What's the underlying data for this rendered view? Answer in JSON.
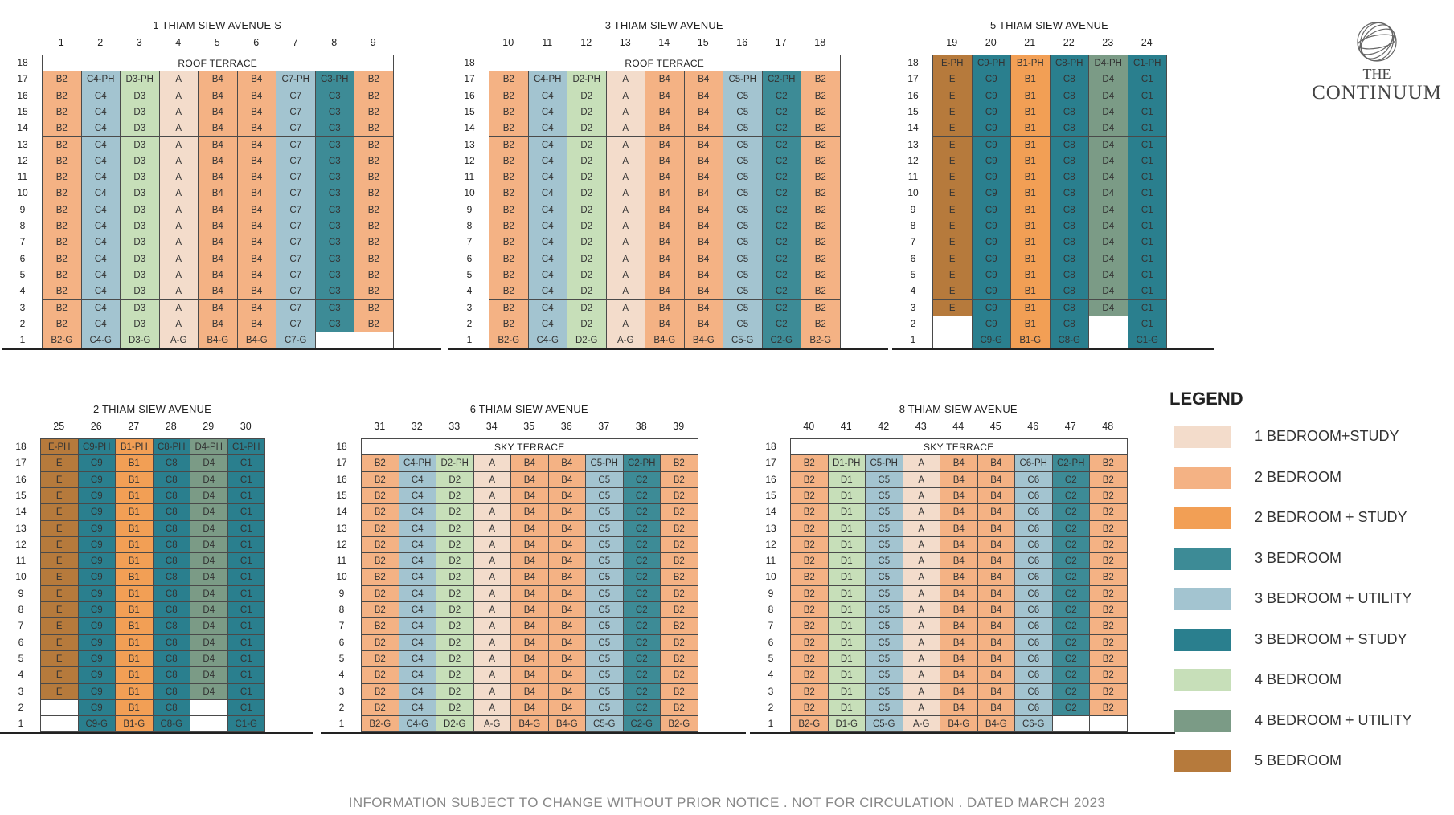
{
  "colors": {
    "A": "#f3dccb",
    "B": "#f4b284",
    "B1": "#f29f55",
    "C1": "#2a7f8e",
    "C2": "#3d8b96",
    "C3": "#3d8b96",
    "C4": "#a3c4d0",
    "C5": "#a3c4d0",
    "C6": "#a3c4d0",
    "C7": "#a3c4d0",
    "C8": "#2a7f8e",
    "C9": "#2a7f8e",
    "D1": "#c7dfb9",
    "D2": "#c7dfb9",
    "D3": "#c7dfb9",
    "D4": "#7b9b86",
    "E": "#b67a3c",
    "empty": "#ffffff"
  },
  "blocks": [
    {
      "name": "1 THIAM SIEW AVENUE S",
      "columns": [
        "1",
        "2",
        "3",
        "4",
        "5",
        "6",
        "7",
        "8",
        "9"
      ],
      "top_floor": "18",
      "top_label": "ROOF TERRACE",
      "penthouse": [
        "B2",
        "C4-PH",
        "D3-PH",
        "A",
        "B4",
        "B4",
        "C7-PH",
        "C3-PH",
        "B2"
      ],
      "typical": [
        "B2",
        "C4",
        "D3",
        "A",
        "B4",
        "B4",
        "C7",
        "C3",
        "B2"
      ],
      "ground": [
        "B2-G",
        "C4-G",
        "D3-G",
        "A-G",
        "B4-G",
        "B4-G",
        "C7-G",
        "",
        ""
      ],
      "typical_floors": [
        "16",
        "15",
        "14",
        "13",
        "12",
        "11",
        "10",
        "9",
        "8",
        "7",
        "6",
        "5",
        "4",
        "3",
        "2"
      ],
      "blank_floors": {}
    },
    {
      "name": "3 THIAM SIEW AVENUE",
      "columns": [
        "10",
        "11",
        "12",
        "13",
        "14",
        "15",
        "16",
        "17",
        "18"
      ],
      "top_floor": "18",
      "top_label": "ROOF TERRACE",
      "penthouse": [
        "B2",
        "C4-PH",
        "D2-PH",
        "A",
        "B4",
        "B4",
        "C5-PH",
        "C2-PH",
        "B2"
      ],
      "typical": [
        "B2",
        "C4",
        "D2",
        "A",
        "B4",
        "B4",
        "C5",
        "C2",
        "B2"
      ],
      "ground": [
        "B2-G",
        "C4-G",
        "D2-G",
        "A-G",
        "B4-G",
        "B4-G",
        "C5-G",
        "C2-G",
        "B2-G"
      ],
      "typical_floors": [
        "16",
        "15",
        "14",
        "13",
        "12",
        "11",
        "10",
        "9",
        "8",
        "7",
        "6",
        "5",
        "4",
        "3",
        "2"
      ],
      "blank_floors": {}
    },
    {
      "name": "5 THIAM SIEW AVENUE",
      "columns": [
        "19",
        "20",
        "21",
        "22",
        "23",
        "24"
      ],
      "top_floor": "18",
      "top_label": "",
      "top_row": [
        "E-PH",
        "C9-PH",
        "B1-PH",
        "C8-PH",
        "D4-PH",
        "C1-PH"
      ],
      "penthouse": [
        "E",
        "C9",
        "B1",
        "C8",
        "D4",
        "C1"
      ],
      "typical": [
        "E",
        "C9",
        "B1",
        "C8",
        "D4",
        "C1"
      ],
      "ground": [
        "",
        "C9-G",
        "B1-G",
        "C8-G",
        "",
        "C1-G"
      ],
      "typical_floors": [
        "16",
        "15",
        "14",
        "13",
        "12",
        "11",
        "10",
        "9",
        "8",
        "7",
        "6",
        "5",
        "4",
        "3",
        "2"
      ],
      "blank_floors": {
        "2": [
          0,
          4
        ]
      }
    },
    {
      "name": "2 THIAM SIEW AVENUE",
      "columns": [
        "25",
        "26",
        "27",
        "28",
        "29",
        "30"
      ],
      "top_floor": "18",
      "top_label": "",
      "top_row": [
        "E-PH",
        "C9-PH",
        "B1-PH",
        "C8-PH",
        "D4-PH",
        "C1-PH"
      ],
      "penthouse": [
        "E",
        "C9",
        "B1",
        "C8",
        "D4",
        "C1"
      ],
      "typical": [
        "E",
        "C9",
        "B1",
        "C8",
        "D4",
        "C1"
      ],
      "ground": [
        "",
        "C9-G",
        "B1-G",
        "C8-G",
        "",
        "C1-G"
      ],
      "typical_floors": [
        "16",
        "15",
        "14",
        "13",
        "12",
        "11",
        "10",
        "9",
        "8",
        "7",
        "6",
        "5",
        "4",
        "3",
        "2"
      ],
      "blank_floors": {
        "2": [
          0,
          4
        ]
      }
    },
    {
      "name": "6 THIAM SIEW AVENUE",
      "columns": [
        "31",
        "32",
        "33",
        "34",
        "35",
        "36",
        "37",
        "38",
        "39"
      ],
      "top_floor": "18",
      "top_label": "SKY TERRACE",
      "penthouse": [
        "B2",
        "C4-PH",
        "D2-PH",
        "A",
        "B4",
        "B4",
        "C5-PH",
        "C2-PH",
        "B2"
      ],
      "typical": [
        "B2",
        "C4",
        "D2",
        "A",
        "B4",
        "B4",
        "C5",
        "C2",
        "B2"
      ],
      "ground": [
        "B2-G",
        "C4-G",
        "D2-G",
        "A-G",
        "B4-G",
        "B4-G",
        "C5-G",
        "C2-G",
        "B2-G"
      ],
      "typical_floors": [
        "16",
        "15",
        "14",
        "13",
        "12",
        "11",
        "10",
        "9",
        "8",
        "7",
        "6",
        "5",
        "4",
        "3",
        "2"
      ],
      "blank_floors": {}
    },
    {
      "name": "8 THIAM SIEW AVENUE",
      "columns": [
        "40",
        "41",
        "42",
        "43",
        "44",
        "45",
        "46",
        "47",
        "48"
      ],
      "top_floor": "18",
      "top_label": "SKY TERRACE",
      "penthouse": [
        "B2",
        "D1-PH",
        "C5-PH",
        "A",
        "B4",
        "B4",
        "C6-PH",
        "C2-PH",
        "B2"
      ],
      "typical": [
        "B2",
        "D1",
        "C5",
        "A",
        "B4",
        "B4",
        "C6",
        "C2",
        "B2"
      ],
      "ground": [
        "B2-G",
        "D1-G",
        "C5-G",
        "A-G",
        "B4-G",
        "B4-G",
        "C6-G",
        "",
        ""
      ],
      "typical_floors": [
        "16",
        "15",
        "14",
        "13",
        "12",
        "11",
        "10",
        "9",
        "8",
        "7",
        "6",
        "5",
        "4",
        "3",
        "2"
      ],
      "blank_floors": {}
    }
  ],
  "floors_labels": {
    "pent": "17",
    "ground": "1"
  },
  "legend": {
    "title": "LEGEND",
    "items": [
      {
        "label": "1 BEDROOM+STUDY",
        "color": "#f3dccb"
      },
      {
        "label": "2 BEDROOM",
        "color": "#f4b284"
      },
      {
        "label": "2 BEDROOM + STUDY",
        "color": "#f29f55"
      },
      {
        "label": "3 BEDROOM",
        "color": "#3d8b96"
      },
      {
        "label": "3 BEDROOM + UTILITY",
        "color": "#a3c4d0"
      },
      {
        "label": "3 BEDROOM + STUDY",
        "color": "#2a7f8e"
      },
      {
        "label": "4 BEDROOM",
        "color": "#c7dfb9"
      },
      {
        "label": "4 BEDROOM + UTILITY",
        "color": "#7b9b86"
      },
      {
        "label": "5 BEDROOM",
        "color": "#b67a3c"
      }
    ]
  },
  "logo": {
    "line1": "THE",
    "line2": "CONTINUUM"
  },
  "footer": "INFORMATION SUBJECT TO CHANGE WITHOUT PRIOR NOTICE . NOT FOR CIRCULATION . DATED MARCH 2023"
}
